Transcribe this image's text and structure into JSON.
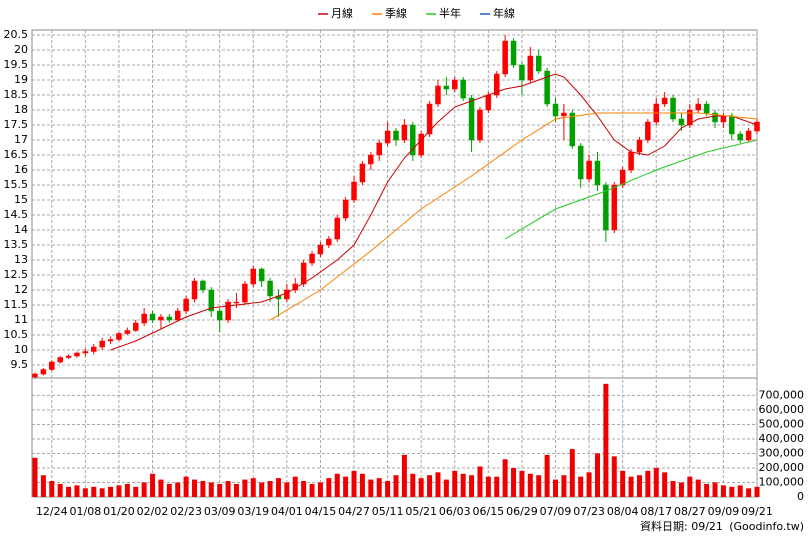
{
  "chart_data": {
    "type": "candlestick",
    "categories": [
      null,
      null,
      "12/24",
      null,
      null,
      null,
      "01/08",
      null,
      null,
      null,
      "01/20",
      null,
      null,
      null,
      "02/02",
      null,
      null,
      null,
      "02/23",
      null,
      null,
      null,
      "03/09",
      null,
      null,
      null,
      "03/19",
      null,
      null,
      null,
      "04/01",
      null,
      null,
      null,
      "04/15",
      null,
      null,
      null,
      "04/27",
      null,
      null,
      null,
      "05/11",
      null,
      null,
      null,
      "05/21",
      null,
      null,
      null,
      "06/03",
      null,
      null,
      null,
      "06/15",
      null,
      null,
      null,
      "06/29",
      null,
      null,
      null,
      "07/09",
      null,
      null,
      null,
      "07/23",
      null,
      null,
      null,
      "08/04",
      null,
      null,
      null,
      "08/17",
      null,
      null,
      null,
      "08/27",
      null,
      null,
      null,
      "09/09",
      null,
      null,
      null,
      "09/21"
    ],
    "ohlc": [
      [
        9.1,
        9.25,
        9.05,
        9.2
      ],
      [
        9.2,
        9.4,
        9.15,
        9.35
      ],
      [
        9.35,
        9.65,
        9.3,
        9.6
      ],
      [
        9.6,
        9.8,
        9.55,
        9.75
      ],
      [
        9.75,
        9.85,
        9.7,
        9.8
      ],
      [
        9.8,
        9.95,
        9.75,
        9.9
      ],
      [
        9.9,
        10.05,
        9.8,
        9.95
      ],
      [
        9.95,
        10.2,
        9.85,
        10.1
      ],
      [
        10.1,
        10.4,
        10.0,
        10.3
      ],
      [
        10.3,
        10.45,
        10.2,
        10.35
      ],
      [
        10.35,
        10.6,
        10.3,
        10.55
      ],
      [
        10.55,
        10.75,
        10.5,
        10.65
      ],
      [
        10.65,
        11.0,
        10.6,
        10.9
      ],
      [
        10.9,
        11.4,
        10.8,
        11.2
      ],
      [
        11.2,
        11.3,
        10.9,
        11.0
      ],
      [
        11.0,
        11.2,
        10.7,
        11.1
      ],
      [
        11.1,
        11.2,
        10.9,
        11.0
      ],
      [
        11.0,
        11.4,
        10.95,
        11.3
      ],
      [
        11.3,
        11.8,
        11.2,
        11.7
      ],
      [
        11.7,
        12.4,
        11.6,
        12.3
      ],
      [
        12.3,
        12.35,
        11.9,
        12.0
      ],
      [
        12.0,
        12.1,
        11.1,
        11.3
      ],
      [
        11.3,
        11.4,
        10.6,
        11.0
      ],
      [
        11.0,
        11.7,
        10.9,
        11.6
      ],
      [
        11.6,
        11.9,
        11.4,
        11.6
      ],
      [
        11.6,
        12.3,
        11.5,
        12.2
      ],
      [
        12.2,
        12.8,
        12.1,
        12.7
      ],
      [
        12.7,
        12.75,
        12.1,
        12.3
      ],
      [
        12.3,
        12.4,
        11.6,
        11.8
      ],
      [
        11.8,
        12.0,
        11.1,
        11.7
      ],
      [
        11.7,
        12.2,
        11.6,
        12.0
      ],
      [
        12.0,
        12.4,
        11.9,
        12.2
      ],
      [
        12.2,
        13.0,
        12.1,
        12.9
      ],
      [
        12.9,
        13.3,
        12.8,
        13.2
      ],
      [
        13.2,
        13.6,
        13.1,
        13.5
      ],
      [
        13.5,
        13.8,
        13.4,
        13.7
      ],
      [
        13.7,
        14.5,
        13.6,
        14.4
      ],
      [
        14.4,
        15.1,
        14.3,
        15.0
      ],
      [
        15.0,
        15.8,
        14.9,
        15.6
      ],
      [
        15.6,
        16.3,
        15.5,
        16.2
      ],
      [
        16.2,
        16.6,
        16.0,
        16.5
      ],
      [
        16.5,
        17.0,
        16.3,
        16.9
      ],
      [
        16.9,
        17.6,
        16.8,
        17.3
      ],
      [
        17.3,
        17.4,
        16.8,
        17.0
      ],
      [
        17.0,
        17.7,
        16.9,
        17.5
      ],
      [
        17.5,
        17.6,
        16.3,
        16.5
      ],
      [
        16.5,
        17.3,
        16.4,
        17.2
      ],
      [
        17.2,
        18.3,
        17.1,
        18.2
      ],
      [
        18.2,
        19.0,
        18.1,
        18.8
      ],
      [
        18.8,
        19.1,
        18.5,
        18.7
      ],
      [
        18.7,
        19.1,
        18.6,
        19.0
      ],
      [
        19.0,
        19.1,
        18.3,
        18.4
      ],
      [
        18.4,
        18.5,
        16.6,
        17.0
      ],
      [
        17.0,
        18.1,
        16.9,
        18.0
      ],
      [
        18.0,
        18.6,
        17.9,
        18.5
      ],
      [
        18.5,
        19.3,
        18.4,
        19.2
      ],
      [
        19.2,
        20.5,
        19.1,
        20.3
      ],
      [
        20.3,
        20.4,
        19.4,
        19.5
      ],
      [
        19.5,
        19.6,
        18.5,
        19.0
      ],
      [
        19.0,
        20.1,
        18.9,
        19.8
      ],
      [
        19.8,
        20.0,
        19.2,
        19.3
      ],
      [
        19.3,
        19.4,
        18.1,
        18.2
      ],
      [
        18.2,
        18.4,
        17.6,
        17.8
      ],
      [
        17.8,
        18.2,
        17.0,
        17.9
      ],
      [
        17.9,
        18.0,
        16.7,
        16.8
      ],
      [
        16.8,
        16.9,
        15.4,
        15.7
      ],
      [
        15.7,
        16.5,
        15.6,
        16.3
      ],
      [
        16.3,
        16.6,
        15.3,
        15.5
      ],
      [
        15.5,
        15.6,
        13.6,
        14.0
      ],
      [
        14.0,
        15.6,
        13.9,
        15.5
      ],
      [
        15.5,
        16.1,
        15.4,
        16.0
      ],
      [
        16.0,
        16.7,
        15.9,
        16.6
      ],
      [
        16.6,
        17.1,
        16.5,
        17.0
      ],
      [
        17.0,
        17.7,
        16.9,
        17.6
      ],
      [
        17.6,
        18.4,
        17.5,
        18.2
      ],
      [
        18.2,
        18.6,
        18.1,
        18.4
      ],
      [
        18.4,
        18.5,
        17.6,
        17.7
      ],
      [
        17.7,
        17.9,
        17.3,
        17.5
      ],
      [
        17.5,
        18.2,
        17.4,
        18.0
      ],
      [
        18.0,
        18.4,
        17.9,
        18.2
      ],
      [
        18.2,
        18.3,
        17.8,
        17.9
      ],
      [
        17.9,
        18.0,
        17.4,
        17.6
      ],
      [
        17.6,
        17.9,
        17.4,
        17.8
      ],
      [
        17.8,
        17.9,
        17.0,
        17.2
      ],
      [
        17.2,
        17.3,
        16.9,
        17.0
      ],
      [
        17.0,
        17.4,
        16.95,
        17.3
      ],
      [
        17.3,
        17.7,
        17.2,
        17.6
      ]
    ],
    "up_color": "#ff0000",
    "down_color": "#00a000",
    "ylim": [
      9.067,
      20.667
    ],
    "yticks": [
      9.5,
      10,
      10.5,
      11,
      11.5,
      12,
      12.5,
      13,
      13.5,
      14,
      14.5,
      15,
      15.5,
      16,
      16.5,
      17,
      17.5,
      18,
      18.5,
      19,
      19.5,
      20,
      20.5
    ],
    "grid": true,
    "series": [
      {
        "name": "月線",
        "color": "#cc0000",
        "x": [
          9,
          12,
          15,
          18,
          21,
          24,
          27,
          30,
          33,
          36,
          38,
          40,
          42,
          44,
          46,
          48,
          50,
          52,
          54,
          56,
          58,
          60,
          62,
          63,
          65,
          67,
          69,
          71,
          73,
          75,
          77,
          79,
          81,
          83,
          86
        ],
        "values": [
          10.0,
          10.3,
          10.7,
          11.1,
          11.4,
          11.5,
          11.6,
          11.9,
          12.4,
          13.0,
          13.5,
          14.5,
          15.6,
          16.4,
          17.0,
          17.6,
          18.1,
          18.3,
          18.5,
          18.7,
          18.8,
          19.0,
          19.2,
          19.1,
          18.5,
          17.8,
          17.0,
          16.6,
          16.5,
          16.8,
          17.4,
          17.7,
          17.8,
          17.8,
          17.5
        ]
      },
      {
        "name": "季線",
        "color": "#ff7f00",
        "x": [
          28,
          34,
          40,
          46,
          52,
          58,
          62,
          67,
          72,
          79,
          86
        ],
        "values": [
          11.0,
          12.0,
          13.3,
          14.7,
          15.8,
          17.0,
          17.7,
          17.9,
          17.9,
          17.9,
          17.7
        ]
      },
      {
        "name": "半年",
        "color": "#22cc22",
        "x": [
          56,
          62,
          68,
          74,
          80,
          86
        ],
        "values": [
          13.7,
          14.7,
          15.3,
          16.0,
          16.6,
          17.0
        ]
      },
      {
        "name": "年線",
        "color": "#1f5fbf",
        "x": [],
        "values": []
      }
    ],
    "volume": {
      "color": "#ee0000",
      "values": [
        270000,
        150000,
        110000,
        90000,
        70000,
        80000,
        60000,
        70000,
        60000,
        70000,
        80000,
        90000,
        70000,
        100000,
        160000,
        120000,
        90000,
        100000,
        140000,
        120000,
        110000,
        100000,
        90000,
        110000,
        90000,
        120000,
        130000,
        100000,
        110000,
        130000,
        100000,
        140000,
        110000,
        90000,
        100000,
        130000,
        160000,
        140000,
        180000,
        160000,
        120000,
        130000,
        110000,
        150000,
        290000,
        160000,
        130000,
        150000,
        170000,
        120000,
        180000,
        160000,
        150000,
        210000,
        140000,
        140000,
        260000,
        200000,
        180000,
        160000,
        150000,
        290000,
        120000,
        150000,
        330000,
        140000,
        170000,
        300000,
        780000,
        280000,
        180000,
        140000,
        150000,
        180000,
        200000,
        170000,
        110000,
        100000,
        140000,
        120000,
        90000,
        100000,
        80000,
        70000,
        80000,
        60000,
        70000
      ],
      "ylim": [
        0,
        820000
      ],
      "yticks": [
        0,
        {
          "value": 100000,
          "label": "100,000"
        },
        {
          "value": 200000,
          "label": "200,000"
        },
        {
          "value": 300000,
          "label": "300,000"
        },
        {
          "value": 400000,
          "label": "400,000"
        },
        {
          "value": 500000,
          "label": "500,000"
        },
        {
          "value": 600000,
          "label": "600,000"
        },
        {
          "value": 700000,
          "label": "700,000"
        }
      ]
    },
    "footnote": "資料日期: 09/21",
    "source": "(Goodinfo.tw)"
  }
}
